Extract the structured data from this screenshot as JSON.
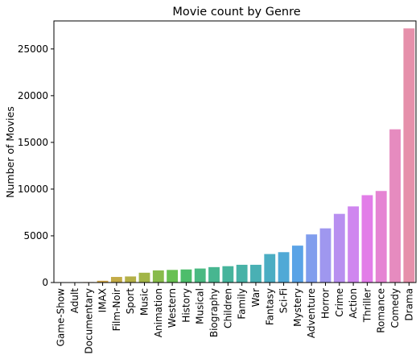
{
  "chart_data": {
    "type": "bar",
    "title": "Movie count by Genre",
    "xlabel": "",
    "ylabel": "Number of Movies",
    "ylim": [
      0,
      28000
    ],
    "yticks": [
      0,
      5000,
      10000,
      15000,
      20000,
      25000
    ],
    "grid": false,
    "categories": [
      "Game-Show",
      "Adult",
      "Documentary",
      "IMAX",
      "Film-Noir",
      "Sport",
      "Music",
      "Animation",
      "Western",
      "History",
      "Musical",
      "Biography",
      "Children",
      "Family",
      "War",
      "Fantasy",
      "Sci-Fi",
      "Mystery",
      "Adventure",
      "Horror",
      "Crime",
      "Action",
      "Thriller",
      "Romance",
      "Comedy",
      "Drama"
    ],
    "values": [
      1,
      5,
      50,
      190,
      600,
      650,
      1050,
      1300,
      1350,
      1400,
      1500,
      1650,
      1750,
      1900,
      1900,
      3050,
      3250,
      3950,
      5150,
      5800,
      7350,
      8150,
      9350,
      9800,
      16400,
      27200
    ],
    "colors": [
      "#e58c7a",
      "#e1946b",
      "#d99e56",
      "#cfa548",
      "#c3ab47",
      "#b4b047",
      "#a2b547",
      "#88bb4b",
      "#68c052",
      "#4dbd6b",
      "#4ab981",
      "#47b690",
      "#47b49c",
      "#48b2a7",
      "#49b0b4",
      "#4badc3",
      "#50a9d6",
      "#5aa3e6",
      "#809ded",
      "#9f97ef",
      "#b88ff0",
      "#cf86ef",
      "#e27de8",
      "#e584d3",
      "#e68bbf",
      "#e690ab"
    ]
  }
}
